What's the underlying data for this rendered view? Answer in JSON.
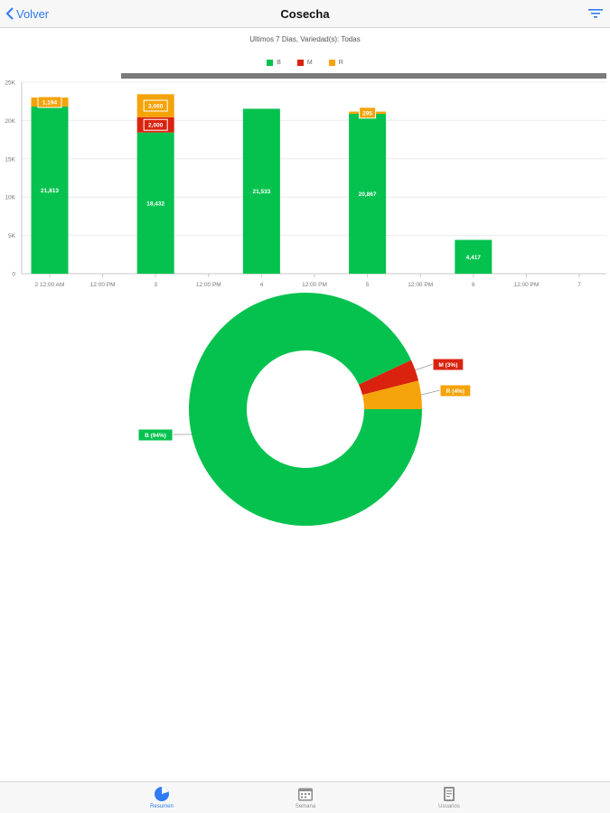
{
  "nav": {
    "back_label": "Volver",
    "title": "Cosecha"
  },
  "subtitle": "Ultimos 7 Dias, Variedad(s): Todas",
  "legend": [
    {
      "label": "B",
      "color": "#05c24e"
    },
    {
      "label": "M",
      "color": "#d9230f"
    },
    {
      "label": "R",
      "color": "#f5a30a"
    }
  ],
  "tabs": [
    {
      "label": "Resumen",
      "icon": "pie-chart-icon",
      "active": true
    },
    {
      "label": "Semana",
      "icon": "calendar-icon",
      "active": false
    },
    {
      "label": "Usuarios",
      "icon": "notebook-icon",
      "active": false
    }
  ],
  "chart_data": [
    {
      "type": "bar",
      "stacked": true,
      "x_tick_labels": [
        "2 12:00 AM",
        "12:00 PM",
        "3",
        "12:00 PM",
        "4",
        "12:00 PM",
        "5",
        "12:00 PM",
        "6",
        "12:00 PM",
        "7"
      ],
      "categories": [
        "2",
        "3",
        "4",
        "5",
        "6"
      ],
      "series": [
        {
          "name": "B",
          "color": "#05c24e",
          "values": [
            21813,
            18432,
            21533,
            20867,
            4417
          ],
          "labels": [
            "21,813",
            "18,432",
            "21,533",
            "20,867",
            "4,417"
          ]
        },
        {
          "name": "M",
          "color": "#d9230f",
          "values": [
            0,
            2000,
            0,
            0,
            0
          ],
          "labels": [
            "",
            "2,000",
            "",
            "",
            ""
          ]
        },
        {
          "name": "R",
          "color": "#f5a30a",
          "values": [
            1194,
            3000,
            0,
            295,
            0
          ],
          "labels": [
            "1,194",
            "3,000",
            "",
            "295",
            ""
          ]
        }
      ],
      "ylim": [
        0,
        25000
      ],
      "y_tick_labels": [
        "0",
        "5K",
        "10K",
        "15K",
        "20K",
        "25K"
      ],
      "grid": true,
      "legend_position": "top-center"
    },
    {
      "type": "pie",
      "donut": true,
      "slices": [
        {
          "name": "B",
          "label": "B (94%)",
          "value": 94,
          "color": "#05c24e"
        },
        {
          "name": "M",
          "label": "M (3%)",
          "value": 3,
          "color": "#d9230f"
        },
        {
          "name": "R",
          "label": "R (4%)",
          "value": 4,
          "color": "#f5a30a"
        }
      ]
    }
  ]
}
